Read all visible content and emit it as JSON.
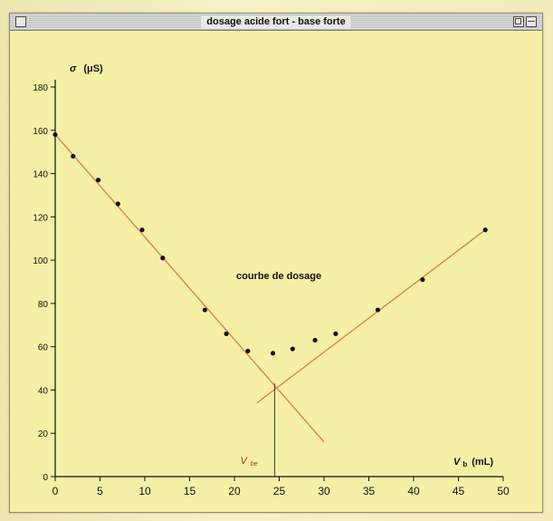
{
  "window": {
    "title": "dosage acide fort - base forte"
  },
  "chart_data": {
    "type": "scatter",
    "title": "courbe de dosage",
    "ylabel": {
      "symbol": "σ",
      "unit": "(μS)"
    },
    "xlabel": {
      "symbol": "V",
      "subscript": "b",
      "unit": "(mL)"
    },
    "xlim": [
      0,
      50
    ],
    "ylim": [
      0,
      180
    ],
    "x_ticks": [
      0,
      5,
      10,
      15,
      20,
      25,
      30,
      35,
      40,
      45,
      50
    ],
    "y_ticks": [
      0,
      20,
      40,
      60,
      80,
      100,
      120,
      140,
      160,
      180
    ],
    "grid": false,
    "series": [
      {
        "points": [
          [
            0,
            158
          ],
          [
            2,
            148
          ],
          [
            4.8,
            137
          ],
          [
            7,
            126
          ],
          [
            9.7,
            114
          ],
          [
            12,
            101
          ],
          [
            16.7,
            77
          ],
          [
            19.1,
            66
          ],
          [
            21.5,
            58
          ],
          [
            24.3,
            57
          ],
          [
            26.5,
            59
          ],
          [
            29,
            63
          ],
          [
            31.3,
            66
          ],
          [
            36,
            77
          ],
          [
            41,
            91
          ],
          [
            48,
            114
          ]
        ]
      }
    ],
    "fit_lines": [
      {
        "from": [
          0,
          158
        ],
        "to": [
          30,
          16
        ]
      },
      {
        "from": [
          22.5,
          34
        ],
        "to": [
          48,
          114
        ]
      }
    ],
    "equivalence": {
      "x": 24.5,
      "label": "V",
      "subscript": "be"
    },
    "colors": {
      "fit_line": "#e07a42",
      "points": "#111111",
      "equivalence_label": "#c02a1a",
      "plot_bg": "#f5f0a6"
    }
  }
}
